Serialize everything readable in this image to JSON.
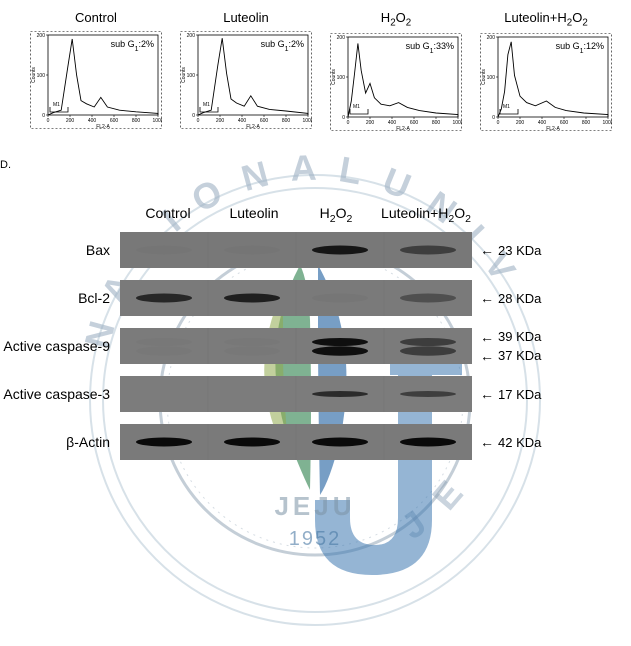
{
  "flow_panels": [
    {
      "title": "Control",
      "subg1_label": "sub G",
      "subg1_sub": "1",
      "subg1_value": ":2%"
    },
    {
      "title": "Luteolin",
      "subg1_label": "sub G",
      "subg1_sub": "1",
      "subg1_value": ":2%"
    },
    {
      "title_html": "H2O2",
      "subg1_label": "sub G",
      "subg1_sub": "1",
      "subg1_value": ":33%"
    },
    {
      "title_html": "Luteolin+H2O2",
      "subg1_label": "sub G",
      "subg1_sub": "1",
      "subg1_value": ":12%"
    }
  ],
  "flow_plot": {
    "border_color": "#000000",
    "axis_color": "#000000",
    "line_color": "#000000",
    "bg_color": "#ffffff",
    "y_label": "Counts",
    "y_ticks": [
      "0",
      "100",
      "200"
    ],
    "x_label": "FL2-A",
    "x_ticks": [
      "0",
      "200",
      "400",
      "600",
      "800",
      "1000"
    ],
    "font_size": 5,
    "m1_label": "M1"
  },
  "panel_label": "D.",
  "blot_headers": [
    "Control",
    "Luteolin",
    "H2O2",
    "Luteolin+H2O2"
  ],
  "blot_header_widths": [
    84,
    88,
    76,
    104
  ],
  "blot_rows": [
    {
      "label": "Bax",
      "bg": "#787878",
      "intensity": [
        0.02,
        0.02,
        0.82,
        0.48
      ],
      "thickness": 9,
      "kda": [
        "23 KDa"
      ]
    },
    {
      "label": "Bcl-2",
      "bg": "#7a7a7a",
      "intensity": [
        0.68,
        0.74,
        0.03,
        0.35
      ],
      "thickness": 9,
      "kda": [
        "28 KDa"
      ]
    },
    {
      "label": "Active caspase-9",
      "bg": "#7b7b7b",
      "intensity": [
        0.02,
        0.02,
        0.88,
        0.5
      ],
      "thickness": 12,
      "double": true,
      "kda": [
        "39 KDa",
        "37 KDa"
      ]
    },
    {
      "label": "Active caspase-3",
      "bg": "#7c7c7c",
      "intensity": [
        0.0,
        0.0,
        0.65,
        0.5
      ],
      "thickness": 6,
      "kda": [
        "17 KDa"
      ]
    },
    {
      "label_html": "beta-Actin",
      "bg": "#7a7a7a",
      "intensity": [
        0.92,
        0.92,
        0.92,
        0.92
      ],
      "thickness": 9,
      "kda": [
        "42 KDa"
      ]
    }
  ],
  "watermark": {
    "ring_text": "NATIONAL UNIVERSITY",
    "ring_text2": "JEJU",
    "year": "1952",
    "ring_color": "#b7c8d6",
    "leaf1": "#2a7e4a",
    "leaf2": "#1d5e9e",
    "leaf3": "#8fa94d",
    "j_color": "#3e79b0",
    "text_color": "#9fb2c4",
    "outline": "#8a9eb0"
  }
}
